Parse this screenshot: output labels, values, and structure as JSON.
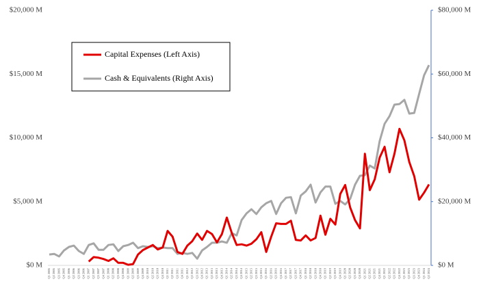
{
  "chart_data": {
    "type": "line",
    "categories": [
      "Q1 2005",
      "Q2 2005",
      "Q3 2005",
      "Q4 2005",
      "Q1 2006",
      "Q2 2006",
      "Q3 2006",
      "Q4 2006",
      "Q1 2007",
      "Q2 2007",
      "Q3 2007",
      "Q4 2007",
      "Q1 2008",
      "Q2 2008",
      "Q3 2008",
      "Q4 2008",
      "Q1 2009",
      "Q2 2009",
      "Q3 2009",
      "Q4 2009",
      "Q1 2010",
      "Q2 2010",
      "Q3 2010",
      "Q4 2010",
      "Q1 2011",
      "Q2 2011",
      "Q3 2011",
      "Q4 2011",
      "Q1 2012",
      "Q2 2012",
      "Q3 2012",
      "Q4 2012",
      "Q1 2013",
      "Q2 2013",
      "Q3 2013",
      "Q4 2013",
      "Q1 2014",
      "Q2 2014",
      "Q3 2014",
      "Q4 2014",
      "Q1 2015",
      "Q2 2015",
      "Q3 2015",
      "Q4 2015",
      "Q1 2016",
      "Q2 2016",
      "Q3 2016",
      "Q4 2016",
      "Q1 2017",
      "Q2 2017",
      "Q3 2017",
      "Q4 2017",
      "Q1 2018",
      "Q2 2018",
      "Q3 2018",
      "Q4 2018",
      "Q1 2019",
      "Q2 2019",
      "Q3 2019",
      "Q4 2019",
      "Q1 2020",
      "Q2 2020",
      "Q3 2020",
      "Q4 2020",
      "Q1 2021",
      "Q2 2021",
      "Q3 2021",
      "Q4 2021",
      "Q1 2022",
      "Q2 2022",
      "Q3 2022",
      "Q4 2022",
      "Q1 2023",
      "Q2 2023",
      "Q3 2023",
      "Q4 2023",
      "Q1 2024",
      "Q2 2024"
    ],
    "series": [
      {
        "name": "Capital Expenses (Left Axis)",
        "color": "#e00000",
        "axis": "y",
        "values": [
          null,
          null,
          null,
          null,
          null,
          null,
          null,
          null,
          300,
          650,
          600,
          500,
          350,
          550,
          200,
          200,
          50,
          100,
          850,
          1200,
          1400,
          1600,
          1250,
          1400,
          2700,
          2250,
          1050,
          900,
          1550,
          1900,
          2500,
          2000,
          2700,
          2450,
          1800,
          2450,
          3750,
          2550,
          1600,
          1650,
          1550,
          1700,
          2050,
          2600,
          1050,
          2250,
          3300,
          3250,
          3250,
          3500,
          2000,
          1950,
          2350,
          1950,
          2150,
          3900,
          2400,
          3650,
          3200,
          5600,
          6300,
          4550,
          3550,
          2900,
          8750,
          5900,
          6750,
          8450,
          9300,
          7300,
          8750,
          10700,
          9800,
          8100,
          7000,
          5150,
          5700,
          6350
        ]
      },
      {
        "name": "Cash & Equivalents (Right Axis)",
        "color": "#a6a6a6",
        "axis": "y2",
        "values": [
          3400,
          3600,
          2800,
          4700,
          5800,
          6200,
          4500,
          3600,
          6400,
          6900,
          4900,
          4900,
          6400,
          6600,
          4500,
          6000,
          6400,
          7100,
          5400,
          6000,
          5800,
          6000,
          5400,
          5600,
          5400,
          5400,
          3600,
          3900,
          3600,
          3900,
          2100,
          4700,
          5800,
          7100,
          7100,
          7500,
          7100,
          10100,
          9400,
          14200,
          16300,
          17600,
          16100,
          18200,
          19500,
          20200,
          16100,
          19500,
          21200,
          21400,
          16300,
          21900,
          23200,
          25300,
          19700,
          22900,
          24700,
          24700,
          19300,
          20200,
          19100,
          20800,
          25300,
          28100,
          28300,
          31300,
          30400,
          39000,
          44400,
          46800,
          50400,
          50600,
          51900,
          47600,
          47800,
          53800,
          59600,
          62800
        ]
      }
    ],
    "ylim": [
      0,
      20000
    ],
    "yticks": [
      {
        "value": 0,
        "label": "$0 M"
      },
      {
        "value": 5000,
        "label": "$5,000 M"
      },
      {
        "value": 10000,
        "label": "$10,000 M"
      },
      {
        "value": 15000,
        "label": "$15,000 M"
      },
      {
        "value": 20000,
        "label": "$20,000 M"
      }
    ],
    "y2lim": [
      0,
      80000
    ],
    "y2ticks": [
      {
        "value": 0,
        "label": "$0 M"
      },
      {
        "value": 20000,
        "label": "$20,000 M"
      },
      {
        "value": 40000,
        "label": "$40,000 M"
      },
      {
        "value": 60000,
        "label": "$60,000 M"
      },
      {
        "value": 80000,
        "label": "$80,000 M"
      }
    ]
  }
}
